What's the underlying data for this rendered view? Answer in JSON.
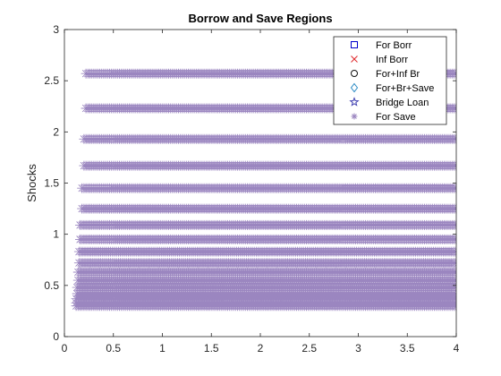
{
  "chart_data": {
    "type": "scatter",
    "title": "Borrow and Save Regions",
    "xlabel": "",
    "ylabel": "Shocks",
    "xlim": [
      0,
      4
    ],
    "ylim": [
      0,
      3
    ],
    "xticks": [
      "0",
      "0.5",
      "1",
      "1.5",
      "2",
      "2.5",
      "3",
      "3.5",
      "4"
    ],
    "yticks": [
      "0",
      "0.5",
      "1",
      "1.5",
      "2",
      "2.5",
      "3"
    ],
    "legend_position": "top-right",
    "legend": [
      {
        "name": "For Borr",
        "marker": "square",
        "color": "#0000cc"
      },
      {
        "name": "Inf Borr",
        "marker": "x",
        "color": "#e0292b"
      },
      {
        "name": "For+Inf Br",
        "marker": "circle",
        "color": "#111111"
      },
      {
        "name": "For+Br+Save",
        "marker": "diamond",
        "color": "#2a8ac4"
      },
      {
        "name": "Bridge Loan",
        "marker": "pentagram",
        "color": "#4040b0"
      },
      {
        "name": "For Save",
        "marker": "asterisk",
        "color": "#9b86c0"
      }
    ],
    "series": [
      {
        "name": "For Save",
        "marker": "asterisk",
        "color": "#9b86c0",
        "bands": [
          {
            "y": 2.57,
            "x_start": 0.22,
            "x_end": 4.0
          },
          {
            "y": 2.23,
            "x_start": 0.22,
            "x_end": 4.0
          },
          {
            "y": 1.93,
            "x_start": 0.2,
            "x_end": 4.0
          },
          {
            "y": 1.67,
            "x_start": 0.2,
            "x_end": 4.0
          },
          {
            "y": 1.45,
            "x_start": 0.18,
            "x_end": 4.0
          },
          {
            "y": 1.25,
            "x_start": 0.18,
            "x_end": 4.0
          },
          {
            "y": 1.09,
            "x_start": 0.16,
            "x_end": 4.0
          },
          {
            "y": 0.95,
            "x_start": 0.16,
            "x_end": 4.0
          },
          {
            "y": 0.83,
            "x_start": 0.15,
            "x_end": 4.0
          },
          {
            "y": 0.72,
            "x_start": 0.15,
            "x_end": 4.0
          },
          {
            "y": 0.63,
            "x_start": 0.14,
            "x_end": 4.0
          },
          {
            "y": 0.55,
            "x_start": 0.14,
            "x_end": 4.0
          },
          {
            "y": 0.48,
            "x_start": 0.13,
            "x_end": 4.0
          },
          {
            "y": 0.42,
            "x_start": 0.13,
            "x_end": 4.0
          },
          {
            "y": 0.37,
            "x_start": 0.12,
            "x_end": 4.0
          },
          {
            "y": 0.33,
            "x_start": 0.12,
            "x_end": 4.0
          },
          {
            "y": 0.3,
            "x_start": 0.12,
            "x_end": 4.0
          }
        ]
      }
    ]
  }
}
